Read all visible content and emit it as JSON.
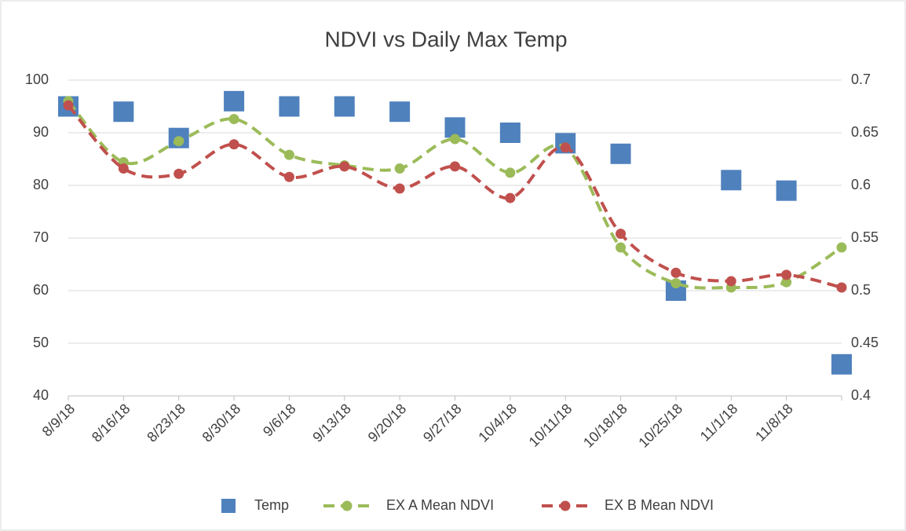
{
  "chart_data": {
    "type": "line",
    "title": "NDVI vs Daily Max Temp",
    "categories": [
      "8/9/18",
      "8/16/18",
      "8/23/18",
      "8/30/18",
      "9/6/18",
      "9/13/18",
      "9/20/18",
      "9/27/18",
      "10/4/18",
      "10/11/18",
      "10/18/18",
      "10/25/18",
      "11/1/18",
      "11/8/18",
      null
    ],
    "series": [
      {
        "name": "Temp",
        "color": "#4f81bd",
        "axis": "y",
        "marker": "square",
        "line": "none",
        "values": [
          95,
          94,
          89,
          96,
          95,
          95,
          94,
          91,
          90,
          88,
          86,
          60,
          81,
          79,
          46
        ]
      },
      {
        "name": "EX A Mean NDVI",
        "color": "#9bbb59",
        "axis": "y2",
        "marker": "circle",
        "line": "dashed",
        "smooth": true,
        "values": [
          0.68,
          0.622,
          0.642,
          0.663,
          0.629,
          0.619,
          0.616,
          0.644,
          0.612,
          0.636,
          0.541,
          0.507,
          0.503,
          0.508,
          0.541
        ]
      },
      {
        "name": "EX B Mean NDVI",
        "color": "#c0504d",
        "axis": "y2",
        "marker": "circle",
        "line": "dashed",
        "smooth": true,
        "values": [
          0.676,
          0.616,
          0.611,
          0.639,
          0.608,
          0.618,
          0.597,
          0.618,
          0.588,
          0.636,
          0.554,
          0.517,
          0.509,
          0.515,
          0.503
        ]
      }
    ],
    "ylim": [
      40,
      100
    ],
    "yticks": [
      40,
      50,
      60,
      70,
      80,
      90,
      100
    ],
    "y2lim": [
      0.4,
      0.7
    ],
    "y2ticks": [
      0.4,
      0.45,
      0.5,
      0.55,
      0.6,
      0.65,
      0.7
    ],
    "grid": true,
    "legend": "bottom"
  }
}
